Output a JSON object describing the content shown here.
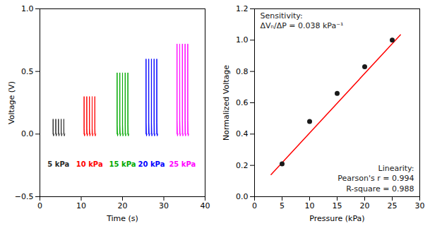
{
  "chart_data": [
    {
      "type": "line",
      "xlabel": "Time (s)",
      "ylabel": "Voltage (V)",
      "xlim": [
        0,
        40
      ],
      "ylim": [
        -0.5,
        1.0
      ],
      "xticks": [
        0,
        10,
        20,
        30,
        40
      ],
      "yticks": [
        -0.5,
        {
          "value": 0.0,
          "label": "0.0"
        },
        0.5,
        {
          "value": 1.0,
          "label": "1.0"
        }
      ],
      "series": [
        {
          "color": "#2a2a2a",
          "x": [
            3.165,
            3.179,
            3.2,
            3.221,
            3.305,
            3.375,
            3.445,
            null,
            3.815,
            3.829,
            3.85,
            3.871,
            3.955,
            4.025,
            4.095,
            null,
            4.465,
            4.479,
            4.5,
            4.521,
            4.605,
            4.675,
            4.745,
            null,
            5.115,
            5.129,
            5.15,
            5.171,
            5.255,
            5.325,
            5.395,
            null,
            5.765,
            5.779,
            5.8,
            5.821,
            5.905,
            5.975,
            6.045
          ],
          "values": [
            0,
            0,
            0.12,
            0.018,
            -0.015,
            -0.005,
            0,
            null,
            0,
            0,
            0.12,
            0.018,
            -0.015,
            -0.005,
            0,
            null,
            0,
            0,
            0.12,
            0.018,
            -0.015,
            -0.005,
            0,
            null,
            0,
            0,
            0.12,
            0.018,
            -0.015,
            -0.005,
            0,
            null,
            0,
            0,
            0.12,
            0.018,
            -0.015,
            -0.005,
            0
          ]
        },
        {
          "color": "#ff0000",
          "x": [
            10.665,
            10.679,
            10.7,
            10.721,
            10.805,
            10.875,
            10.945,
            null,
            11.315,
            11.329,
            11.35,
            11.371,
            11.455,
            11.525,
            11.595,
            null,
            11.965,
            11.979,
            12,
            12.021,
            12.105,
            12.175,
            12.245,
            null,
            12.615,
            12.629,
            12.65,
            12.671,
            12.755,
            12.825,
            12.895,
            null,
            13.265,
            13.279,
            13.3,
            13.321,
            13.405,
            13.475,
            13.545
          ],
          "values": [
            0,
            0,
            0.3,
            0.045,
            -0.015,
            -0.005,
            0,
            null,
            0,
            0,
            0.3,
            0.045,
            -0.015,
            -0.005,
            0,
            null,
            0,
            0,
            0.3,
            0.045,
            -0.015,
            -0.005,
            0,
            null,
            0,
            0,
            0.3,
            0.045,
            -0.015,
            -0.005,
            0,
            null,
            0,
            0,
            0.3,
            0.045,
            -0.015,
            -0.005,
            0
          ]
        },
        {
          "color": "#00aa00",
          "x": [
            18.665,
            18.679,
            18.7,
            18.721,
            18.805,
            18.875,
            18.945,
            null,
            19.315,
            19.329,
            19.35,
            19.371,
            19.455,
            19.525,
            19.595,
            null,
            19.965,
            19.979,
            20,
            20.021,
            20.105,
            20.175,
            20.245,
            null,
            20.615,
            20.629,
            20.65,
            20.671,
            20.755,
            20.825,
            20.895,
            null,
            21.265,
            21.279,
            21.3,
            21.321,
            21.405,
            21.475,
            21.545
          ],
          "values": [
            0,
            0,
            0.49,
            0.0735,
            -0.015,
            -0.005,
            0,
            null,
            0,
            0,
            0.49,
            0.0735,
            -0.015,
            -0.005,
            0,
            null,
            0,
            0,
            0.49,
            0.0735,
            -0.015,
            -0.005,
            0,
            null,
            0,
            0,
            0.49,
            0.0735,
            -0.015,
            -0.005,
            0,
            null,
            0,
            0,
            0.49,
            0.0735,
            -0.015,
            -0.005,
            0
          ]
        },
        {
          "color": "#0000ff",
          "x": [
            25.665,
            25.679,
            25.7,
            25.721,
            25.805,
            25.875,
            25.945,
            null,
            26.315,
            26.329,
            26.35,
            26.371,
            26.455,
            26.525,
            26.595,
            null,
            26.965,
            26.979,
            27,
            27.021,
            27.105,
            27.175,
            27.245,
            null,
            27.615,
            27.629,
            27.65,
            27.671,
            27.755,
            27.825,
            27.895,
            null,
            28.265,
            28.279,
            28.3,
            28.321,
            28.405,
            28.475,
            28.545
          ],
          "values": [
            0,
            0,
            0.6,
            0.09,
            -0.015,
            -0.005,
            0,
            null,
            0,
            0,
            0.6,
            0.09,
            -0.015,
            -0.005,
            0,
            null,
            0,
            0,
            0.6,
            0.09,
            -0.015,
            -0.005,
            0,
            null,
            0,
            0,
            0.6,
            0.09,
            -0.015,
            -0.005,
            0,
            null,
            0,
            0,
            0.6,
            0.09,
            -0.015,
            -0.005,
            0
          ]
        },
        {
          "color": "#ff00ff",
          "x": [
            33.165,
            33.179,
            33.2,
            33.221,
            33.305,
            33.375,
            33.445,
            null,
            33.815,
            33.829,
            33.85,
            33.871,
            33.955,
            34.025,
            34.095,
            null,
            34.465,
            34.479,
            34.5,
            34.521,
            34.605,
            34.675,
            34.745,
            null,
            35.115,
            35.129,
            35.15,
            35.171,
            35.255,
            35.325,
            35.395,
            null,
            35.765,
            35.779,
            35.8,
            35.821,
            35.905,
            35.975,
            36.045
          ],
          "values": [
            0,
            0,
            0.72,
            0.108,
            -0.015,
            -0.005,
            0,
            null,
            0,
            0,
            0.72,
            0.108,
            -0.015,
            -0.005,
            0,
            null,
            0,
            0,
            0.72,
            0.108,
            -0.015,
            -0.005,
            0,
            null,
            0,
            0,
            0.72,
            0.108,
            -0.015,
            -0.005,
            0,
            null,
            0,
            0,
            0.72,
            0.108,
            -0.015,
            -0.005,
            0
          ]
        }
      ],
      "annotations": [
        {
          "text": "5 kPa",
          "x": 4.5,
          "y": -0.22,
          "color": "#2a2a2a"
        },
        {
          "text": "10 kPa",
          "x": 12.0,
          "y": -0.22,
          "color": "#ff0000"
        },
        {
          "text": "15 kPa",
          "x": 20.0,
          "y": -0.22,
          "color": "#00aa00"
        },
        {
          "text": "20 kPa",
          "x": 27.0,
          "y": -0.22,
          "color": "#0000ff"
        },
        {
          "text": "25 kPa",
          "x": 34.5,
          "y": -0.22,
          "color": "#ff00ff"
        }
      ]
    },
    {
      "type": "scatter",
      "xlabel": "Pressure (kPa)",
      "ylabel": "Normalized Voltage",
      "xlim": [
        0,
        30
      ],
      "ylim": [
        0.0,
        1.2
      ],
      "xticks": [
        0,
        5,
        10,
        15,
        20,
        25,
        30
      ],
      "yticks": [
        {
          "value": 0.0,
          "label": "0.0"
        },
        0.2,
        0.4,
        0.6,
        0.8,
        {
          "value": 1.0,
          "label": "1.0"
        },
        1.2
      ],
      "series": [
        {
          "type": "line",
          "color": "#ff0000",
          "x": [
            3.0,
            26.5
          ],
          "values": [
            0.141,
            1.034
          ]
        },
        {
          "type": "scatter",
          "color": "#1a1a1a",
          "x": [
            5,
            10,
            15,
            20,
            25
          ],
          "values": [
            0.21,
            0.48,
            0.66,
            0.83,
            1.0
          ]
        }
      ],
      "annotations": [
        "Sensitivity:",
        "ΔVₙ/ΔP = 0.038 kPa⁻¹",
        "Linearity:\nPearson's r = 0.994\nR-square = 0.988"
      ]
    }
  ]
}
